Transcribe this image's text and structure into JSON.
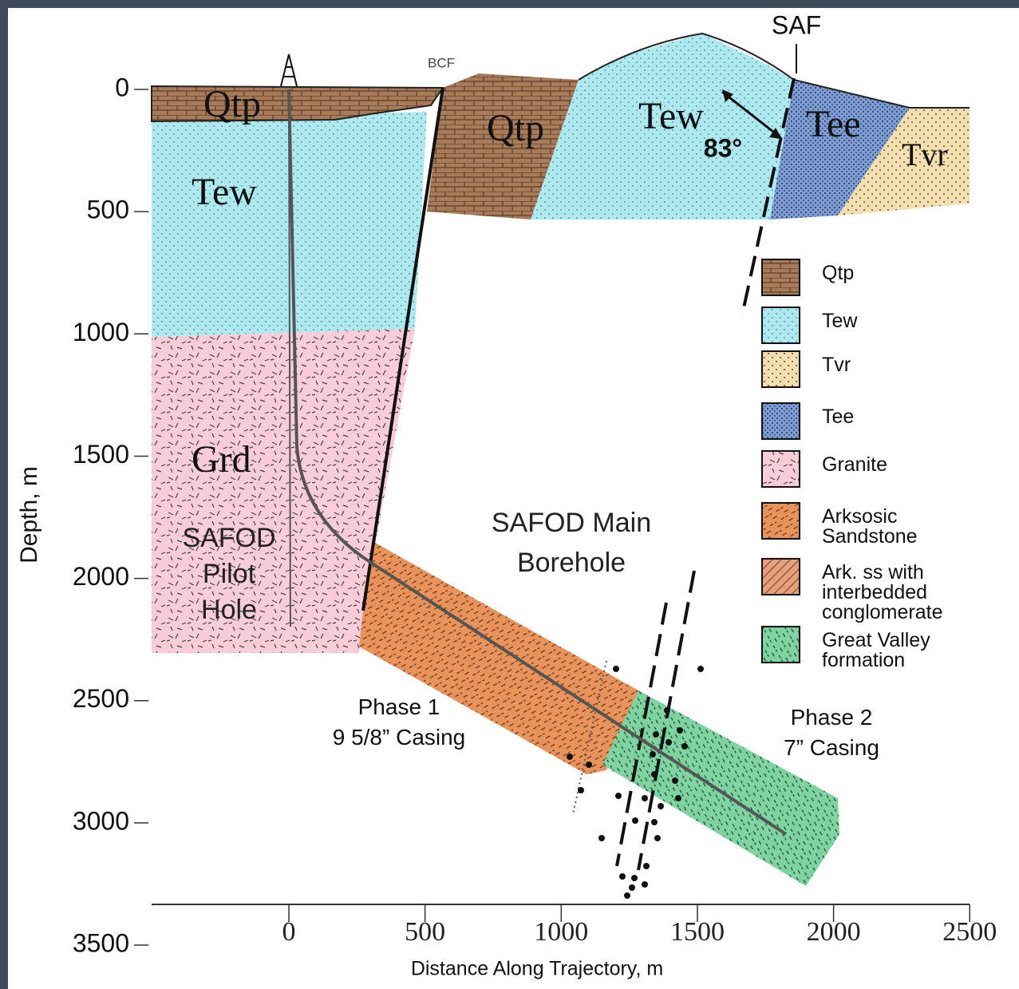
{
  "axes": {
    "y_label": "Depth, m",
    "y_ticks": [
      0,
      500,
      1000,
      1500,
      2000,
      2500,
      3000,
      3500
    ],
    "x_label": "Distance Along Trajectory, m",
    "x_ticks": [
      0,
      500,
      1000,
      1500,
      2000,
      2500
    ]
  },
  "formations": {
    "qtp_left": "Qtp",
    "tew_left": "Tew",
    "qtp_mid": "Qtp",
    "tew_right": "Tew",
    "tee": "Tee",
    "tvr": "Tvr",
    "grd": "Grd"
  },
  "annotations": {
    "saf": "SAF",
    "bcf": "BCF",
    "angle": "83°",
    "pilot_hole": [
      "SAFOD",
      "Pilot",
      "Hole"
    ],
    "main_borehole": [
      "SAFOD Main",
      "Borehole"
    ],
    "phase1": [
      "Phase 1",
      "9 5/8” Casing"
    ],
    "phase2": [
      "Phase 2",
      "7” Casing"
    ]
  },
  "legend": [
    [
      "Qtp"
    ],
    [
      "Tew"
    ],
    [
      "Tvr"
    ],
    [
      "Tee"
    ],
    [
      "Granite"
    ],
    [
      "Arksosic",
      "Sandstone"
    ],
    [
      "Ark. ss with",
      "interbedded",
      "conglomerate"
    ],
    [
      "Great Valley",
      "formation"
    ]
  ]
}
